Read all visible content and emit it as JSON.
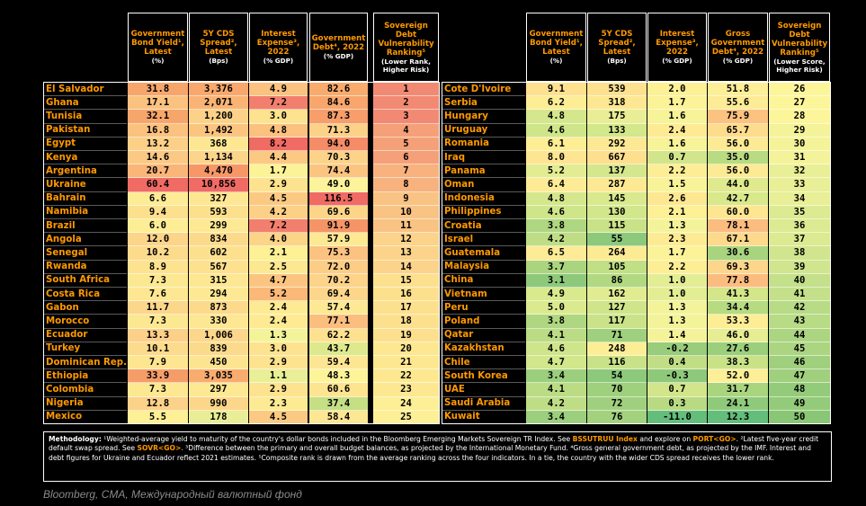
{
  "headers_left": [
    {
      "title": "Government Bond Yield¹, Latest",
      "unit": "(%)"
    },
    {
      "title": "5Y CDS Spread², Latest",
      "unit": "(Bps)"
    },
    {
      "title": "Interest Expense³, 2022",
      "unit": "(% GDP)"
    },
    {
      "title": "Government Debt⁴, 2022",
      "unit": "(% GDP)"
    },
    {
      "title": "Sovereign Debt Vulnerability Ranking⁵",
      "unit": "(Lower Rank, Higher Risk)"
    }
  ],
  "headers_right": [
    {
      "title": "Government Bond Yield¹, Latest",
      "unit": "(%)"
    },
    {
      "title": "5Y CDS Spread², Latest",
      "unit": "(Bps)"
    },
    {
      "title": "Interest Expense³, 2022",
      "unit": "(% GDP)"
    },
    {
      "title": "Gross Government Debt⁴, 2022",
      "unit": "(% GDP)"
    },
    {
      "title": "Sovereign Debt Vulnerability Ranking⁵",
      "unit": "(Lower Score, Higher Risk)"
    }
  ],
  "left_rows": [
    {
      "country": "El Salvador",
      "values": [
        "31.8",
        "3,376",
        "4.9",
        "82.6",
        "1"
      ],
      "colors": [
        "#f7a66b",
        "#f8a86c",
        "#fbc17f",
        "#f9aa6d",
        "#f28a73"
      ]
    },
    {
      "country": "Ghana",
      "values": [
        "17.1",
        "2,071",
        "7.2",
        "84.6",
        "2"
      ],
      "colors": [
        "#fbc17f",
        "#f9b475",
        "#f27f6d",
        "#f8a66b",
        "#f28a73"
      ]
    },
    {
      "country": "Tunisia",
      "values": [
        "32.1",
        "1,200",
        "3.0",
        "87.3",
        "3"
      ],
      "colors": [
        "#f7a66b",
        "#fcd288",
        "#fde38f",
        "#f79e6a",
        "#f28a73"
      ]
    },
    {
      "country": "Pakistan",
      "values": [
        "16.8",
        "1,492",
        "4.8",
        "71.3",
        "4"
      ],
      "colors": [
        "#fbc17f",
        "#fbc57f",
        "#fbc17f",
        "#fcd188",
        "#f5a078"
      ]
    },
    {
      "country": "Egypt",
      "values": [
        "13.2",
        "368",
        "8.2",
        "94.0",
        "5"
      ],
      "colors": [
        "#fcd088",
        "#fde792",
        "#f06b64",
        "#f48c68",
        "#f5a078"
      ]
    },
    {
      "country": "Kenya",
      "values": [
        "14.6",
        "1,134",
        "4.4",
        "70.3",
        "6"
      ],
      "colors": [
        "#fcc985",
        "#fcd48a",
        "#fcc983",
        "#fcd389",
        "#f5a078"
      ]
    },
    {
      "country": "Argentina",
      "values": [
        "20.7",
        "4,470",
        "1.7",
        "74.4",
        "7"
      ],
      "colors": [
        "#fab578",
        "#f79768",
        "#fcf298",
        "#fbc581",
        "#f7b27d"
      ]
    },
    {
      "country": "Ukraine",
      "values": [
        "60.4",
        "10,856",
        "2.9",
        "49.0",
        "8"
      ],
      "colors": [
        "#f06b64",
        "#f06b64",
        "#fde38f",
        "#fdf39a",
        "#f7b27d"
      ]
    },
    {
      "country": "Bahrain",
      "values": [
        "6.6",
        "327",
        "4.5",
        "116.5",
        "9"
      ],
      "colors": [
        "#fdec95",
        "#fde792",
        "#fcc983",
        "#f06b64",
        "#f9c383"
      ]
    },
    {
      "country": "Namibia",
      "values": [
        "9.4",
        "593",
        "4.2",
        "69.6",
        "10"
      ],
      "colors": [
        "#fde08e",
        "#fde08e",
        "#fcd086",
        "#fcd589",
        "#f9c383"
      ]
    },
    {
      "country": "Brazil",
      "values": [
        "6.0",
        "299",
        "7.2",
        "91.9",
        "11"
      ],
      "colors": [
        "#fdee96",
        "#fde893",
        "#f27f6d",
        "#f59567",
        "#f9c383"
      ]
    },
    {
      "country": "Angola",
      "values": [
        "12.0",
        "834",
        "4.0",
        "57.9",
        "12"
      ],
      "colors": [
        "#fcd48a",
        "#fcda8c",
        "#fcd488",
        "#fde893",
        "#fbd38a"
      ]
    },
    {
      "country": "Senegal",
      "values": [
        "10.2",
        "602",
        "2.1",
        "75.3",
        "13"
      ],
      "colors": [
        "#fddb8c",
        "#fde08e",
        "#fdf095",
        "#fbc280",
        "#fbd38a"
      ]
    },
    {
      "country": "Rwanda",
      "values": [
        "8.9",
        "567",
        "2.5",
        "72.0",
        "14"
      ],
      "colors": [
        "#fde28f",
        "#fde18f",
        "#fde892",
        "#fccd86",
        "#fbd38a"
      ]
    },
    {
      "country": "South Africa",
      "values": [
        "7.3",
        "315",
        "4.7",
        "70.2",
        "15"
      ],
      "colors": [
        "#fde892",
        "#fde792",
        "#fbc581",
        "#fcd389",
        "#fde08e"
      ]
    },
    {
      "country": "Costa Rica",
      "values": [
        "7.6",
        "294",
        "5.2",
        "69.4",
        "16"
      ],
      "colors": [
        "#fde792",
        "#fde893",
        "#fab978",
        "#fcd68a",
        "#fde08e"
      ]
    },
    {
      "country": "Gabon",
      "values": [
        "11.7",
        "873",
        "2.4",
        "57.4",
        "17"
      ],
      "colors": [
        "#fcd68a",
        "#fcd98b",
        "#fdea93",
        "#fde893",
        "#fde08e"
      ]
    },
    {
      "country": "Morocco",
      "values": [
        "7.3",
        "330",
        "2.4",
        "77.1",
        "18"
      ],
      "colors": [
        "#fde892",
        "#fde792",
        "#fdea93",
        "#fbbe7f",
        "#fde08e"
      ]
    },
    {
      "country": "Ecuador",
      "values": [
        "13.3",
        "1,006",
        "1.3",
        "62.2",
        "19"
      ],
      "colors": [
        "#fcd088",
        "#fcd68a",
        "#f3f39a",
        "#fde18f",
        "#fde08e"
      ]
    },
    {
      "country": "Turkey",
      "values": [
        "10.1",
        "839",
        "3.0",
        "43.7",
        "20"
      ],
      "colors": [
        "#fddb8c",
        "#fcda8c",
        "#fde38f",
        "#dde98c",
        "#fde891"
      ]
    },
    {
      "country": "Dominican Rep.",
      "values": [
        "7.9",
        "450",
        "2.9",
        "59.4",
        "21"
      ],
      "colors": [
        "#fde591",
        "#fde491",
        "#fde38f",
        "#fde693",
        "#fde891"
      ]
    },
    {
      "country": "Ethiopia",
      "values": [
        "33.9",
        "3,035",
        "1.1",
        "48.3",
        "22"
      ],
      "colors": [
        "#f59d69",
        "#f8ac6f",
        "#e8ef96",
        "#fdf49a",
        "#fde891"
      ]
    },
    {
      "country": "Colombia",
      "values": [
        "7.3",
        "297",
        "2.9",
        "60.6",
        "23"
      ],
      "colors": [
        "#fde892",
        "#fde893",
        "#fde38f",
        "#fde491",
        "#fde891"
      ]
    },
    {
      "country": "Nigeria",
      "values": [
        "12.8",
        "990",
        "2.3",
        "37.4",
        "24"
      ],
      "colors": [
        "#fcd189",
        "#fcd68a",
        "#fdeb93",
        "#c5df84",
        "#fdef96"
      ]
    },
    {
      "country": "Mexico",
      "values": [
        "5.5",
        "178",
        "4.5",
        "58.4",
        "25"
      ],
      "colors": [
        "#fdf095",
        "#e9ee96",
        "#fcc983",
        "#fde793",
        "#fdef96"
      ]
    }
  ],
  "right_rows": [
    {
      "country": "Cote D'Ivoire",
      "values": [
        "9.1",
        "539",
        "2.0",
        "51.8",
        "26"
      ],
      "colors": [
        "#fde18f",
        "#fde18f",
        "#fdf095",
        "#fdef97",
        "#fdf59a"
      ]
    },
    {
      "country": "Serbia",
      "values": [
        "6.2",
        "318",
        "1.7",
        "55.6",
        "27"
      ],
      "colors": [
        "#fded95",
        "#fde792",
        "#fcf298",
        "#fdeb95",
        "#fdf59a"
      ]
    },
    {
      "country": "Hungary",
      "values": [
        "4.8",
        "175",
        "1.6",
        "75.9",
        "28"
      ],
      "colors": [
        "#d5e78c",
        "#e9ee96",
        "#f7f399",
        "#fbc280",
        "#fdf59a"
      ]
    },
    {
      "country": "Uruguay",
      "values": [
        "4.6",
        "133",
        "2.4",
        "65.7",
        "29"
      ],
      "colors": [
        "#cfe58a",
        "#d3e78b",
        "#fdea93",
        "#fddc8d",
        "#f4f399"
      ]
    },
    {
      "country": "Romania",
      "values": [
        "6.1",
        "292",
        "1.6",
        "56.0",
        "30"
      ],
      "colors": [
        "#fdee96",
        "#fde893",
        "#f7f399",
        "#fdea94",
        "#f4f399"
      ]
    },
    {
      "country": "Iraq",
      "values": [
        "8.0",
        "667",
        "0.7",
        "35.0",
        "31"
      ],
      "colors": [
        "#fde591",
        "#fddf8e",
        "#d3e58a",
        "#b9db81",
        "#f4f399"
      ]
    },
    {
      "country": "Panama",
      "values": [
        "5.2",
        "137",
        "2.2",
        "56.0",
        "32"
      ],
      "colors": [
        "#e3ec93",
        "#d5e78c",
        "#fdee95",
        "#fdea94",
        "#e8ef96"
      ]
    },
    {
      "country": "Oman",
      "values": [
        "6.4",
        "287",
        "1.5",
        "44.0",
        "33"
      ],
      "colors": [
        "#fdec95",
        "#fde893",
        "#f8f399",
        "#dfe98d",
        "#e8ef96"
      ]
    },
    {
      "country": "Indonesia",
      "values": [
        "4.8",
        "145",
        "2.6",
        "42.7",
        "34"
      ],
      "colors": [
        "#d5e78c",
        "#d9e98e",
        "#fde791",
        "#d9e88b",
        "#e8ef96"
      ]
    },
    {
      "country": "Philippines",
      "values": [
        "4.6",
        "130",
        "2.1",
        "60.0",
        "35"
      ],
      "colors": [
        "#cfe58a",
        "#d2e68b",
        "#fdf095",
        "#fde591",
        "#dcea92"
      ]
    },
    {
      "country": "Croatia",
      "values": [
        "3.8",
        "115",
        "1.3",
        "78.1",
        "36"
      ],
      "colors": [
        "#afd680",
        "#c9e288",
        "#f3f39a",
        "#fbbc7f",
        "#dcea92"
      ]
    },
    {
      "country": "Israel",
      "values": [
        "4.2",
        "55",
        "2.3",
        "67.1",
        "37"
      ],
      "colors": [
        "#bfdd85",
        "#8cc97b",
        "#fdeb93",
        "#fcd98b",
        "#dcea92"
      ]
    },
    {
      "country": "Guatemala",
      "values": [
        "6.5",
        "264",
        "1.7",
        "30.6",
        "38"
      ],
      "colors": [
        "#fdeb95",
        "#fdeb94",
        "#fcf298",
        "#a9d47f",
        "#d0e58e"
      ]
    },
    {
      "country": "Malaysia",
      "values": [
        "3.7",
        "105",
        "2.2",
        "69.3",
        "39"
      ],
      "colors": [
        "#abd47f",
        "#c1df85",
        "#fdee95",
        "#fcd68a",
        "#d0e58e"
      ]
    },
    {
      "country": "China",
      "values": [
        "3.1",
        "86",
        "1.0",
        "77.8",
        "40"
      ],
      "colors": [
        "#8ec97b",
        "#b1d982",
        "#e3ed94",
        "#fbbd7f",
        "#c4e08a"
      ]
    },
    {
      "country": "Vietnam",
      "values": [
        "4.9",
        "162",
        "1.0",
        "41.3",
        "41"
      ],
      "colors": [
        "#d9e98e",
        "#e1ec92",
        "#e3ed94",
        "#d3e689",
        "#c4e08a"
      ]
    },
    {
      "country": "Peru",
      "values": [
        "5.0",
        "127",
        "1.3",
        "34.4",
        "42"
      ],
      "colors": [
        "#dcea8f",
        "#d0e58a",
        "#f3f39a",
        "#b7db81",
        "#b8db86"
      ]
    },
    {
      "country": "Poland",
      "values": [
        "3.8",
        "117",
        "1.3",
        "53.3",
        "43"
      ],
      "colors": [
        "#afd680",
        "#cae38a",
        "#f3f39a",
        "#fdee96",
        "#b8db86"
      ]
    },
    {
      "country": "Qatar",
      "values": [
        "4.1",
        "71",
        "1.4",
        "46.0",
        "44"
      ],
      "colors": [
        "#bbdc84",
        "#9fd07d",
        "#f5f39a",
        "#e7ed92",
        "#acd582"
      ]
    },
    {
      "country": "Kazakhstan",
      "values": [
        "4.6",
        "248",
        "-0.2",
        "27.6",
        "45"
      ],
      "colors": [
        "#cfe58a",
        "#fdee96",
        "#99cc7b",
        "#9ccf7c",
        "#acd582"
      ]
    },
    {
      "country": "Chile",
      "values": [
        "4.7",
        "116",
        "0.4",
        "38.3",
        "46"
      ],
      "colors": [
        "#d2e68b",
        "#c9e289",
        "#c1de86",
        "#c9e287",
        "#a0d07e"
      ]
    },
    {
      "country": "South Korea",
      "values": [
        "3.4",
        "54",
        "-0.3",
        "52.0",
        "47"
      ],
      "colors": [
        "#9ccf7d",
        "#8cc97b",
        "#8ec97b",
        "#fdef97",
        "#a0d07e"
      ]
    },
    {
      "country": "UAE",
      "values": [
        "4.1",
        "70",
        "0.7",
        "31.7",
        "48"
      ],
      "colors": [
        "#bbdc84",
        "#9fd07d",
        "#d3e58a",
        "#aad57f",
        "#94cb7a"
      ]
    },
    {
      "country": "Saudi Arabia",
      "values": [
        "4.2",
        "72",
        "0.3",
        "24.1",
        "49"
      ],
      "colors": [
        "#bfdd85",
        "#a0d07e",
        "#b8da83",
        "#8fca7b",
        "#94cb7a"
      ]
    },
    {
      "country": "Kuwait",
      "values": [
        "3.4",
        "76",
        "-11.0",
        "12.3",
        "50"
      ],
      "colors": [
        "#9ccf7d",
        "#a3d27e",
        "#63be7b",
        "#63be7b",
        "#89c776"
      ]
    }
  ],
  "methodology": {
    "label": "Methodology:",
    "p1": "¹Weighted-average yield to maturity of the country's dollar bonds included in the Bloomberg Emerging Markets Sovereign TR Index. See ",
    "code1": "BSSUTRUU Index",
    "p2": " and explore on ",
    "code2": "PORT<GO>",
    "p3": ". ²Latest five-year credit default swap spread. See ",
    "code3": "SOVR<GO>",
    "p4": ". ³Difference between the primary and overall budget balances, as projected by the International Monetary Fund. ⁴Gross general government debt, as projected by the IMF. Interest and debt figures for Ukraine and Ecuador reflect 2021 estimates. ⁵Composite rank is drawn from the average ranking across the four indicators. In a tie, the country with the wider CDS spread receives the lower rank."
  },
  "source": "Bloomberg, CMA, Международный валютный фонд"
}
